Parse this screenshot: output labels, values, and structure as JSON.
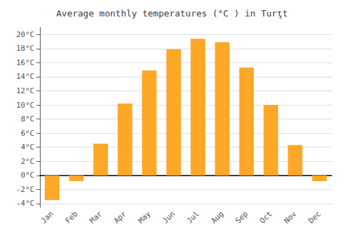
{
  "chart_data": {
    "type": "bar",
    "title": "Average monthly temperatures (°C ) in Turţt",
    "categories": [
      "Jan",
      "Feb",
      "Mar",
      "Apr",
      "May",
      "Jun",
      "Jul",
      "Aug",
      "Sep",
      "Oct",
      "Nov",
      "Dec"
    ],
    "values": [
      -3.5,
      -0.8,
      4.5,
      10.2,
      14.9,
      17.9,
      19.4,
      18.9,
      15.3,
      10.0,
      4.3,
      -0.8
    ],
    "color": "#FFA726",
    "ylim": [
      -4.5,
      21.0
    ],
    "yticks": [
      {
        "value": -4,
        "label": "-4°C"
      },
      {
        "value": -2,
        "label": "-2°C"
      },
      {
        "value": 0,
        "label": "0°C"
      },
      {
        "value": 2,
        "label": "2°C"
      },
      {
        "value": 4,
        "label": "4°C"
      },
      {
        "value": 6,
        "label": "6°C"
      },
      {
        "value": 8,
        "label": "8°C"
      },
      {
        "value": 10,
        "label": "10°C"
      },
      {
        "value": 12,
        "label": "12°C"
      },
      {
        "value": 14,
        "label": "14°C"
      },
      {
        "value": 16,
        "label": "16°C"
      },
      {
        "value": 18,
        "label": "18°C"
      },
      {
        "value": 20,
        "label": "20°C"
      }
    ],
    "grid": true
  }
}
